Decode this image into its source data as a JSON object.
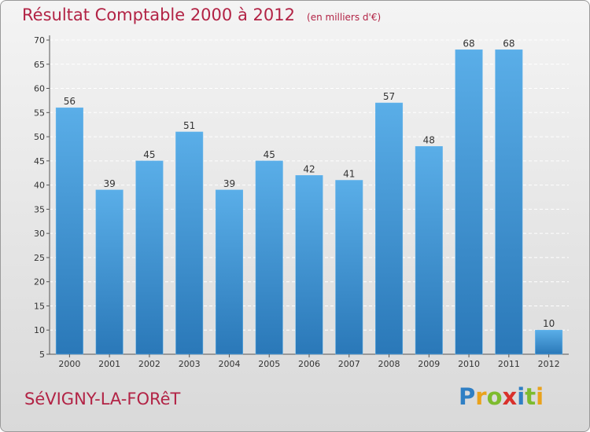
{
  "header": {
    "title": "Résultat Comptable 2000 à 2012",
    "subtitle": "(en milliers d'€)"
  },
  "footer": {
    "town": "SéVIGNY-LA-FORêT",
    "logo_letters": [
      {
        "ch": "P",
        "color": "#2f7fc4"
      },
      {
        "ch": "r",
        "color": "#e9a21c"
      },
      {
        "ch": "o",
        "color": "#7dbb2e"
      },
      {
        "ch": "x",
        "color": "#d9302b"
      },
      {
        "ch": "i",
        "color": "#2f7fc4"
      },
      {
        "ch": "t",
        "color": "#7dbb2e"
      },
      {
        "ch": "i",
        "color": "#e9a21c"
      }
    ]
  },
  "colors": {
    "bar": "#3d93d6",
    "bar_light": "#5aaee8",
    "bar_dark": "#2a78b8",
    "accent": "#b22345"
  },
  "chart_data": {
    "type": "bar",
    "categories": [
      "2000",
      "2001",
      "2002",
      "2003",
      "2004",
      "2005",
      "2006",
      "2007",
      "2008",
      "2009",
      "2010",
      "2011",
      "2012"
    ],
    "values": [
      56,
      39,
      45,
      51,
      39,
      45,
      42,
      41,
      57,
      48,
      68,
      68,
      10
    ],
    "ylim": [
      5,
      70
    ],
    "yticks": [
      5,
      10,
      15,
      20,
      25,
      30,
      35,
      40,
      45,
      50,
      55,
      60,
      65,
      70
    ],
    "grid": true
  }
}
